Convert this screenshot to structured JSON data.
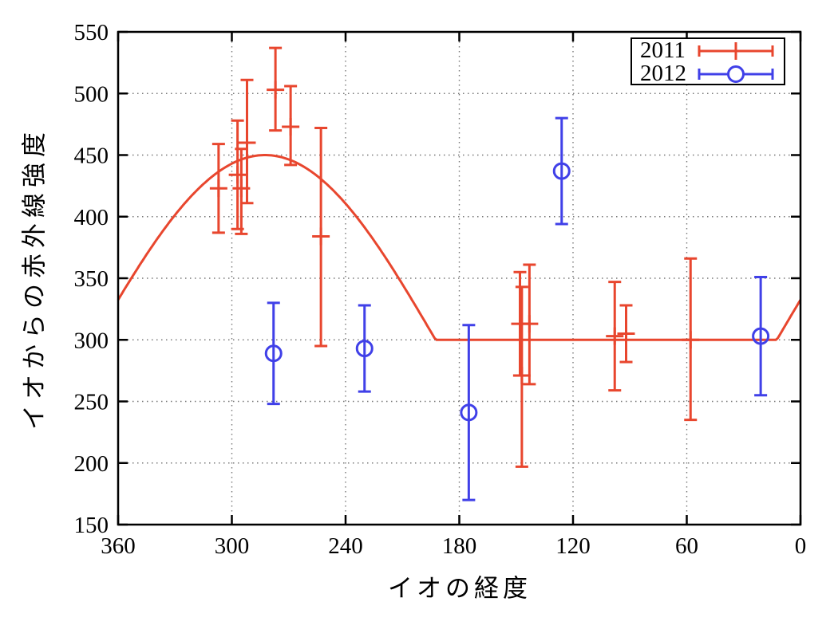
{
  "chart_data": {
    "type": "scatter",
    "title": "",
    "xlabel": "イオの経度",
    "ylabel": "イオからの赤外線強度",
    "x_ticks": [
      360,
      300,
      240,
      180,
      120,
      60,
      0
    ],
    "y_ticks": [
      150,
      200,
      250,
      300,
      350,
      400,
      450,
      500,
      550
    ],
    "xlim": [
      360,
      0
    ],
    "ylim": [
      150,
      550
    ],
    "x_axis_reversed": true,
    "grid": "dotted",
    "grid_color": "#777777",
    "axis_color": "#000000",
    "legend_position": "top-right",
    "series": [
      {
        "name": "2011",
        "color": "#e8462e",
        "marker": "plus-errorbar",
        "points": [
          {
            "x": 307,
            "y": 423,
            "ylo": 387,
            "yhi": 459
          },
          {
            "x": 297,
            "y": 434,
            "ylo": 390,
            "yhi": 478
          },
          {
            "x": 295,
            "y": 423,
            "ylo": 386,
            "yhi": 455
          },
          {
            "x": 292,
            "y": 460,
            "ylo": 411,
            "yhi": 511
          },
          {
            "x": 277,
            "y": 503,
            "ylo": 470,
            "yhi": 537
          },
          {
            "x": 269,
            "y": 473,
            "ylo": 442,
            "yhi": 506
          },
          {
            "x": 253,
            "y": 384,
            "ylo": 295,
            "yhi": 472
          },
          {
            "x": 148,
            "y": 313,
            "ylo": 271,
            "yhi": 355
          },
          {
            "x": 147,
            "y": 271,
            "ylo": 197,
            "yhi": 343
          },
          {
            "x": 143,
            "y": 313,
            "ylo": 264,
            "yhi": 361
          },
          {
            "x": 98,
            "y": 303,
            "ylo": 259,
            "yhi": 347
          },
          {
            "x": 92,
            "y": 305,
            "ylo": 282,
            "yhi": 328
          },
          {
            "x": 58,
            "y": 300,
            "ylo": 235,
            "yhi": 366
          }
        ]
      },
      {
        "name": "2012",
        "color": "#4040e8",
        "marker": "circle-errorbar",
        "points": [
          {
            "x": 278,
            "y": 289,
            "ylo": 248,
            "yhi": 330
          },
          {
            "x": 230,
            "y": 293,
            "ylo": 258,
            "yhi": 328
          },
          {
            "x": 175,
            "y": 241,
            "ylo": 170,
            "yhi": 312
          },
          {
            "x": 126,
            "y": 437,
            "ylo": 394,
            "yhi": 480
          },
          {
            "x": 21,
            "y": 303,
            "ylo": 255,
            "yhi": 351
          }
        ]
      }
    ],
    "fit_curve": {
      "color": "#e8462e",
      "formula": "y = 300 + 150*cos(x - 282.5deg), clipped below at 300",
      "base": 300,
      "amplitude": 150,
      "peak_x": 282.5,
      "clip_min": 300
    }
  }
}
